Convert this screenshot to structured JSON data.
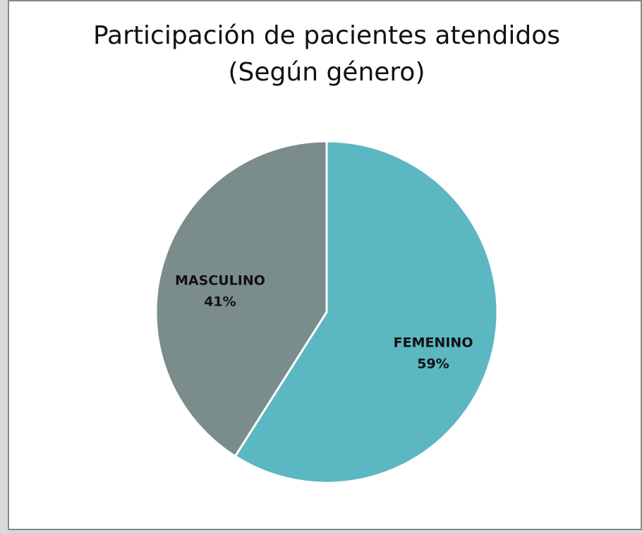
{
  "chart_data": {
    "type": "pie",
    "title": "Participación de pacientes atendidos",
    "subtitle": "(Según género)",
    "categories": [
      "FEMENINO",
      "MASCULINO"
    ],
    "values": [
      59,
      41
    ],
    "value_labels": [
      "59%",
      "41%"
    ],
    "colors": [
      "#5bb7c1",
      "#7b8c8c"
    ]
  }
}
